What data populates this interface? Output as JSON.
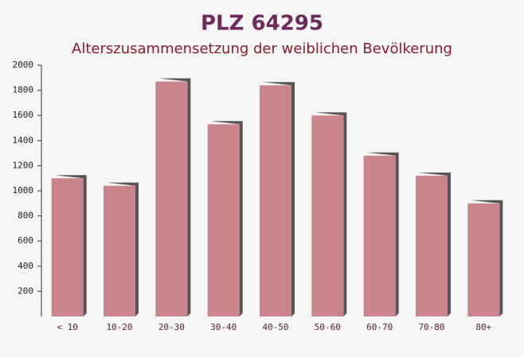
{
  "chart_data": {
    "type": "bar",
    "title": "PLZ 64295",
    "subtitle": "Alterszusammensetzung der weiblichen Bevölkerung",
    "categories": [
      "< 10",
      "10-20",
      "20-30",
      "30-40",
      "40-50",
      "50-60",
      "60-70",
      "70-80",
      "80+"
    ],
    "values": [
      1100,
      1040,
      1870,
      1530,
      1840,
      1600,
      1280,
      1120,
      900
    ],
    "color": "#c27079",
    "ylim": [
      0,
      2000
    ],
    "yticks": [
      200,
      400,
      600,
      800,
      1000,
      1200,
      1400,
      1600,
      1800,
      2000
    ]
  }
}
